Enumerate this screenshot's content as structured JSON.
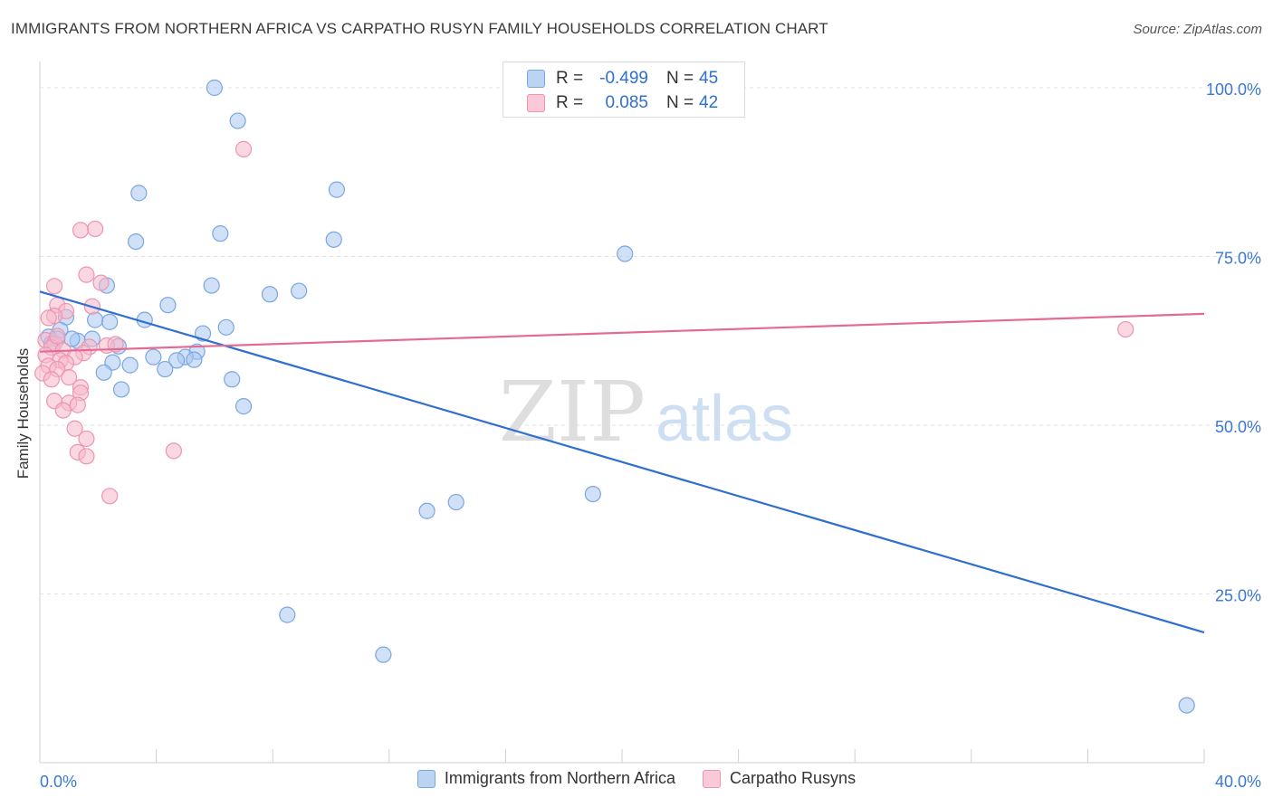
{
  "title": "IMMIGRANTS FROM NORTHERN AFRICA VS CARPATHO RUSYN FAMILY HOUSEHOLDS CORRELATION CHART",
  "source": "Source: ZipAtlas.com",
  "watermark": {
    "zip": "ZIP",
    "atlas": "atlas"
  },
  "stats": [
    {
      "r_label": "R =",
      "r_value": "-0.499",
      "n_label": "N =",
      "n_value": "45"
    },
    {
      "r_label": "R =",
      "r_value": "0.085",
      "n_label": "N =",
      "n_value": "42"
    }
  ],
  "colors": {
    "blue_fill": "#aac8f0",
    "blue_stroke": "#7aa6e0",
    "blue_line": "#2e6fd0",
    "pink_fill": "#f6b8cb",
    "pink_stroke": "#ee94b0",
    "pink_line": "#e46a95",
    "grid": "#e3e3e3",
    "tick_text": "#3a78d4"
  },
  "chart_data": {
    "type": "scatter",
    "xlabel": "",
    "ylabel": "Family Households",
    "xlim": [
      0,
      40
    ],
    "ylim": [
      0,
      100
    ],
    "x_tick_labels": [
      {
        "value": 0,
        "label": "0.0%"
      },
      {
        "value": 40,
        "label": "40.0%"
      }
    ],
    "y_tick_labels": [
      {
        "value": 100,
        "label": "100.0%"
      },
      {
        "value": 75,
        "label": "75.0%"
      },
      {
        "value": 50,
        "label": "50.0%"
      },
      {
        "value": 25,
        "label": "25.0%"
      }
    ],
    "x_minor_ticks": [
      4,
      8,
      12,
      16,
      20,
      24,
      28,
      32,
      36,
      40
    ],
    "grid": true,
    "legend_position": "bottom-center",
    "series": [
      {
        "name": "Immigrants from Northern Africa",
        "color_key": "blue",
        "trend": {
          "x": [
            0,
            40
          ],
          "y": [
            69.8,
            19.3
          ]
        },
        "points": [
          [
            6.0,
            100.0
          ],
          [
            6.8,
            95.1
          ],
          [
            3.4,
            84.4
          ],
          [
            10.2,
            84.9
          ],
          [
            3.3,
            77.2
          ],
          [
            6.2,
            78.4
          ],
          [
            10.1,
            77.5
          ],
          [
            20.1,
            75.4
          ],
          [
            2.3,
            70.7
          ],
          [
            5.9,
            70.7
          ],
          [
            7.9,
            69.4
          ],
          [
            8.9,
            69.9
          ],
          [
            4.4,
            67.8
          ],
          [
            0.9,
            66.0
          ],
          [
            1.9,
            65.6
          ],
          [
            2.4,
            65.3
          ],
          [
            3.6,
            65.6
          ],
          [
            6.4,
            64.5
          ],
          [
            0.7,
            64.1
          ],
          [
            5.6,
            63.6
          ],
          [
            0.3,
            63.1
          ],
          [
            0.6,
            62.8
          ],
          [
            1.3,
            62.5
          ],
          [
            2.7,
            61.7
          ],
          [
            0.4,
            62.1
          ],
          [
            1.1,
            62.8
          ],
          [
            5.4,
            60.9
          ],
          [
            3.9,
            60.1
          ],
          [
            5.0,
            60.1
          ],
          [
            4.7,
            59.6
          ],
          [
            5.3,
            59.7
          ],
          [
            2.5,
            59.3
          ],
          [
            3.1,
            58.9
          ],
          [
            4.3,
            58.3
          ],
          [
            2.2,
            57.8
          ],
          [
            6.6,
            56.8
          ],
          [
            2.8,
            55.3
          ],
          [
            7.0,
            52.8
          ],
          [
            13.3,
            37.3
          ],
          [
            14.3,
            38.6
          ],
          [
            19.0,
            39.8
          ],
          [
            8.5,
            21.9
          ],
          [
            11.8,
            16.0
          ],
          [
            39.4,
            8.5
          ],
          [
            1.8,
            62.8
          ]
        ]
      },
      {
        "name": "Carpatho Rusyns",
        "color_key": "pink",
        "trend": {
          "x": [
            0,
            40
          ],
          "y": [
            60.9,
            66.5
          ]
        },
        "points": [
          [
            7.0,
            90.9
          ],
          [
            1.9,
            79.1
          ],
          [
            1.4,
            78.9
          ],
          [
            1.6,
            72.3
          ],
          [
            2.1,
            71.1
          ],
          [
            0.5,
            70.6
          ],
          [
            0.6,
            67.8
          ],
          [
            1.8,
            67.6
          ],
          [
            0.9,
            66.9
          ],
          [
            0.5,
            66.2
          ],
          [
            0.3,
            65.9
          ],
          [
            0.2,
            62.6
          ],
          [
            0.5,
            62.1
          ],
          [
            0.4,
            61.5
          ],
          [
            1.7,
            61.6
          ],
          [
            2.3,
            61.8
          ],
          [
            2.6,
            62.0
          ],
          [
            0.8,
            61.1
          ],
          [
            1.5,
            60.7
          ],
          [
            0.2,
            60.4
          ],
          [
            1.2,
            60.1
          ],
          [
            0.7,
            59.6
          ],
          [
            0.9,
            59.2
          ],
          [
            0.3,
            58.8
          ],
          [
            0.6,
            58.3
          ],
          [
            0.1,
            57.7
          ],
          [
            1.0,
            57.1
          ],
          [
            0.4,
            56.8
          ],
          [
            1.4,
            55.6
          ],
          [
            1.4,
            54.8
          ],
          [
            0.5,
            53.6
          ],
          [
            1.0,
            53.3
          ],
          [
            1.3,
            53.0
          ],
          [
            0.8,
            52.2
          ],
          [
            1.2,
            49.5
          ],
          [
            1.6,
            48.0
          ],
          [
            1.3,
            46.0
          ],
          [
            1.6,
            45.4
          ],
          [
            4.6,
            46.2
          ],
          [
            2.4,
            39.5
          ],
          [
            37.3,
            64.2
          ],
          [
            0.6,
            63.2
          ]
        ]
      }
    ]
  }
}
